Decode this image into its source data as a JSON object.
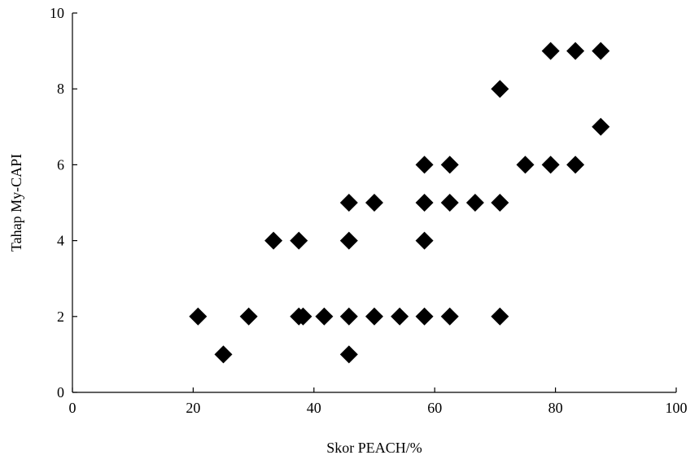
{
  "chart_data": {
    "type": "scatter",
    "title": "",
    "xlabel": "Skor PEACH/%",
    "ylabel": "Tahap My-CAPI",
    "xlim": [
      0,
      100
    ],
    "ylim": [
      0,
      10
    ],
    "xticks": [
      0,
      20,
      40,
      60,
      80,
      100
    ],
    "yticks": [
      0,
      2,
      4,
      6,
      8,
      10
    ],
    "grid": false,
    "legend": "none",
    "marker": "diamond",
    "marker_color": "#000000",
    "series": [
      {
        "points": [
          {
            "x": 20.8,
            "y": 2
          },
          {
            "x": 25.0,
            "y": 1
          },
          {
            "x": 29.2,
            "y": 2
          },
          {
            "x": 33.3,
            "y": 4
          },
          {
            "x": 37.5,
            "y": 4
          },
          {
            "x": 37.5,
            "y": 2
          },
          {
            "x": 38.2,
            "y": 2
          },
          {
            "x": 41.7,
            "y": 2
          },
          {
            "x": 45.8,
            "y": 5
          },
          {
            "x": 45.8,
            "y": 4
          },
          {
            "x": 45.8,
            "y": 2
          },
          {
            "x": 45.8,
            "y": 1
          },
          {
            "x": 50.0,
            "y": 5
          },
          {
            "x": 50.0,
            "y": 2
          },
          {
            "x": 54.2,
            "y": 2
          },
          {
            "x": 58.3,
            "y": 6
          },
          {
            "x": 58.3,
            "y": 5
          },
          {
            "x": 58.3,
            "y": 4
          },
          {
            "x": 58.3,
            "y": 2
          },
          {
            "x": 62.5,
            "y": 6
          },
          {
            "x": 62.5,
            "y": 5
          },
          {
            "x": 62.5,
            "y": 2
          },
          {
            "x": 66.7,
            "y": 5
          },
          {
            "x": 70.8,
            "y": 8
          },
          {
            "x": 70.8,
            "y": 5
          },
          {
            "x": 70.8,
            "y": 2
          },
          {
            "x": 75.0,
            "y": 6
          },
          {
            "x": 79.2,
            "y": 9
          },
          {
            "x": 79.2,
            "y": 6
          },
          {
            "x": 83.3,
            "y": 9
          },
          {
            "x": 83.3,
            "y": 6
          },
          {
            "x": 87.5,
            "y": 9
          },
          {
            "x": 87.5,
            "y": 7
          }
        ]
      }
    ]
  }
}
